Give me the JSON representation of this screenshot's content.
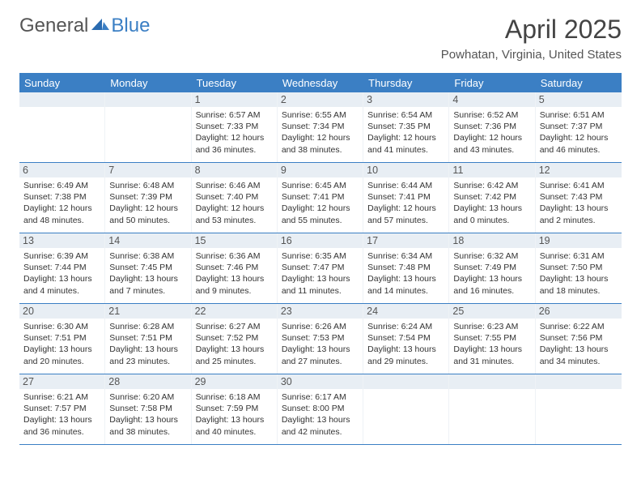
{
  "logo": {
    "text_general": "General",
    "text_blue": "Blue"
  },
  "title": "April 2025",
  "subtitle": "Powhatan, Virginia, United States",
  "colors": {
    "header_bg": "#3b7fc4",
    "daynum_bg": "#e8eef4",
    "text_dark": "#333333",
    "text_mid": "#555555",
    "border": "#3b7fc4"
  },
  "day_headers": [
    "Sunday",
    "Monday",
    "Tuesday",
    "Wednesday",
    "Thursday",
    "Friday",
    "Saturday"
  ],
  "weeks": [
    [
      null,
      null,
      {
        "n": "1",
        "sr": "6:57 AM",
        "ss": "7:33 PM",
        "dl": "12 hours and 36 minutes."
      },
      {
        "n": "2",
        "sr": "6:55 AM",
        "ss": "7:34 PM",
        "dl": "12 hours and 38 minutes."
      },
      {
        "n": "3",
        "sr": "6:54 AM",
        "ss": "7:35 PM",
        "dl": "12 hours and 41 minutes."
      },
      {
        "n": "4",
        "sr": "6:52 AM",
        "ss": "7:36 PM",
        "dl": "12 hours and 43 minutes."
      },
      {
        "n": "5",
        "sr": "6:51 AM",
        "ss": "7:37 PM",
        "dl": "12 hours and 46 minutes."
      }
    ],
    [
      {
        "n": "6",
        "sr": "6:49 AM",
        "ss": "7:38 PM",
        "dl": "12 hours and 48 minutes."
      },
      {
        "n": "7",
        "sr": "6:48 AM",
        "ss": "7:39 PM",
        "dl": "12 hours and 50 minutes."
      },
      {
        "n": "8",
        "sr": "6:46 AM",
        "ss": "7:40 PM",
        "dl": "12 hours and 53 minutes."
      },
      {
        "n": "9",
        "sr": "6:45 AM",
        "ss": "7:41 PM",
        "dl": "12 hours and 55 minutes."
      },
      {
        "n": "10",
        "sr": "6:44 AM",
        "ss": "7:41 PM",
        "dl": "12 hours and 57 minutes."
      },
      {
        "n": "11",
        "sr": "6:42 AM",
        "ss": "7:42 PM",
        "dl": "13 hours and 0 minutes."
      },
      {
        "n": "12",
        "sr": "6:41 AM",
        "ss": "7:43 PM",
        "dl": "13 hours and 2 minutes."
      }
    ],
    [
      {
        "n": "13",
        "sr": "6:39 AM",
        "ss": "7:44 PM",
        "dl": "13 hours and 4 minutes."
      },
      {
        "n": "14",
        "sr": "6:38 AM",
        "ss": "7:45 PM",
        "dl": "13 hours and 7 minutes."
      },
      {
        "n": "15",
        "sr": "6:36 AM",
        "ss": "7:46 PM",
        "dl": "13 hours and 9 minutes."
      },
      {
        "n": "16",
        "sr": "6:35 AM",
        "ss": "7:47 PM",
        "dl": "13 hours and 11 minutes."
      },
      {
        "n": "17",
        "sr": "6:34 AM",
        "ss": "7:48 PM",
        "dl": "13 hours and 14 minutes."
      },
      {
        "n": "18",
        "sr": "6:32 AM",
        "ss": "7:49 PM",
        "dl": "13 hours and 16 minutes."
      },
      {
        "n": "19",
        "sr": "6:31 AM",
        "ss": "7:50 PM",
        "dl": "13 hours and 18 minutes."
      }
    ],
    [
      {
        "n": "20",
        "sr": "6:30 AM",
        "ss": "7:51 PM",
        "dl": "13 hours and 20 minutes."
      },
      {
        "n": "21",
        "sr": "6:28 AM",
        "ss": "7:51 PM",
        "dl": "13 hours and 23 minutes."
      },
      {
        "n": "22",
        "sr": "6:27 AM",
        "ss": "7:52 PM",
        "dl": "13 hours and 25 minutes."
      },
      {
        "n": "23",
        "sr": "6:26 AM",
        "ss": "7:53 PM",
        "dl": "13 hours and 27 minutes."
      },
      {
        "n": "24",
        "sr": "6:24 AM",
        "ss": "7:54 PM",
        "dl": "13 hours and 29 minutes."
      },
      {
        "n": "25",
        "sr": "6:23 AM",
        "ss": "7:55 PM",
        "dl": "13 hours and 31 minutes."
      },
      {
        "n": "26",
        "sr": "6:22 AM",
        "ss": "7:56 PM",
        "dl": "13 hours and 34 minutes."
      }
    ],
    [
      {
        "n": "27",
        "sr": "6:21 AM",
        "ss": "7:57 PM",
        "dl": "13 hours and 36 minutes."
      },
      {
        "n": "28",
        "sr": "6:20 AM",
        "ss": "7:58 PM",
        "dl": "13 hours and 38 minutes."
      },
      {
        "n": "29",
        "sr": "6:18 AM",
        "ss": "7:59 PM",
        "dl": "13 hours and 40 minutes."
      },
      {
        "n": "30",
        "sr": "6:17 AM",
        "ss": "8:00 PM",
        "dl": "13 hours and 42 minutes."
      },
      null,
      null,
      null
    ]
  ],
  "labels": {
    "sunrise": "Sunrise: ",
    "sunset": "Sunset: ",
    "daylight": "Daylight: "
  }
}
